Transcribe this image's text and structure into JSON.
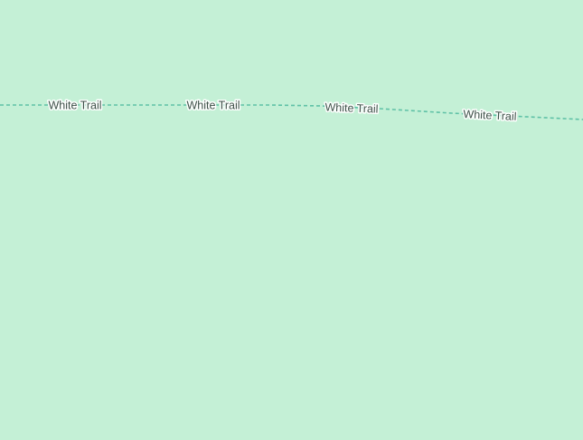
{
  "map": {
    "background_color": "#c4f0d6",
    "trail": {
      "name": "White Trail",
      "style": "dashed",
      "color": "#5fc1a6",
      "labels": [
        "White Trail",
        "White Trail",
        "White Trail",
        "White Trail"
      ]
    }
  }
}
